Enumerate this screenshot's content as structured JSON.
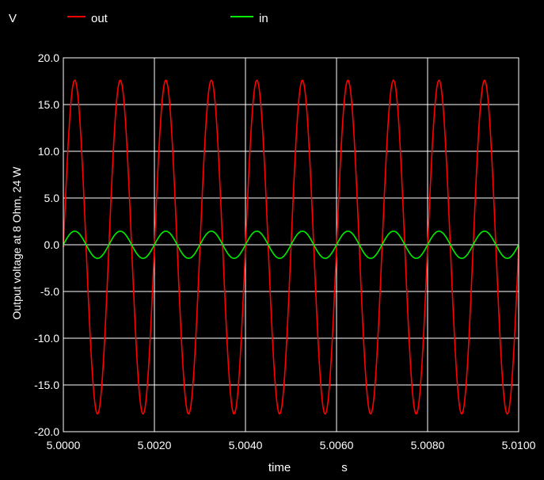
{
  "chart_data": {
    "type": "line",
    "title": "",
    "y_unit_label": "V",
    "ylabel": "Output voltage at 8 Ohm, 24 W",
    "xlabel": "time",
    "x_unit_label": "s",
    "xlim": [
      5.0,
      5.01
    ],
    "ylim": [
      -20.0,
      20.0
    ],
    "x_ticks": [
      "5.0000",
      "5.0020",
      "5.0040",
      "5.0060",
      "5.0080",
      "5.0100"
    ],
    "y_ticks": [
      "20.0",
      "15.0",
      "10.0",
      "5.0",
      "0.0",
      "-5.0",
      "-10.0",
      "-15.0",
      "-20.0"
    ],
    "grid": true,
    "legend_position": "top",
    "frequency_hz": 1000,
    "series": [
      {
        "name": "out",
        "color": "#ff0000",
        "amplitude": 17.8,
        "peak_max": 17.6,
        "peak_min": -18.1,
        "phase_shift_periods": 0.0,
        "first_peak_time": 5.00025,
        "samples": 2000
      },
      {
        "name": "in",
        "color": "#00ee00",
        "amplitude": 1.45,
        "peak_max": 1.45,
        "peak_min": -1.45,
        "first_peak_time": 5.00025,
        "samples": 2000
      }
    ],
    "colors": {
      "background": "#000000",
      "axes": "#ffffff",
      "grid": "#ffffff",
      "text": "#ffffff"
    }
  }
}
